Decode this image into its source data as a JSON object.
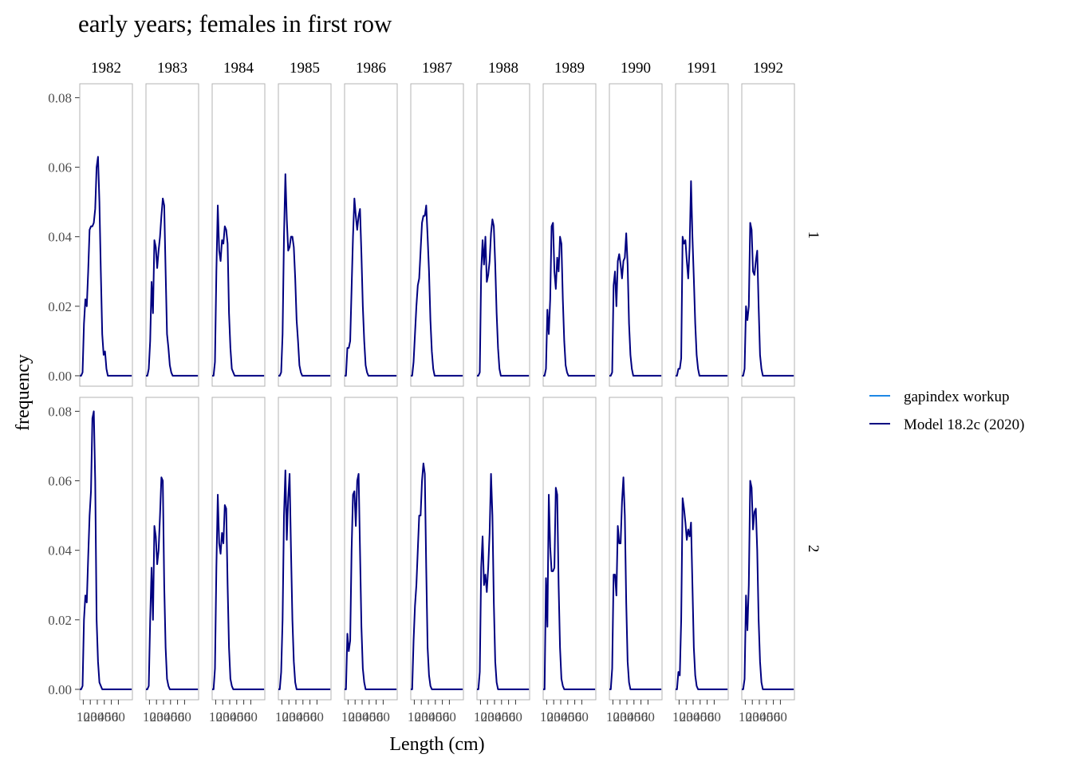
{
  "chart_data": {
    "type": "line",
    "title": "early years; females in first row",
    "xlabel": "Length (cm)",
    "ylabel": "frequency",
    "facet_columns": [
      "1982",
      "1983",
      "1984",
      "1985",
      "1986",
      "1987",
      "1988",
      "1989",
      "1990",
      "1991",
      "1992"
    ],
    "facet_rows": [
      "1",
      "2"
    ],
    "xlim": [
      5,
      80
    ],
    "ylim": [
      -0.003,
      0.084
    ],
    "x_ticks": [
      10,
      20,
      30,
      40,
      50,
      60
    ],
    "x_tick_labels": [
      "10",
      "20",
      "30",
      "40",
      "50",
      "60"
    ],
    "y_ticks": [
      0,
      0.02,
      0.04,
      0.06,
      0.08
    ],
    "y_tick_labels": [
      "0.00",
      "0.02",
      "0.04",
      "0.06",
      "0.08"
    ],
    "grid": false,
    "legend": {
      "placement": "right",
      "entries": [
        {
          "name": "gapindex workup",
          "color": "#1e88e5"
        },
        {
          "name": "Model 18.2c (2020)",
          "color": "#000080"
        }
      ]
    },
    "series_color": "#000080",
    "x": [
      5,
      7,
      9,
      11,
      13,
      15,
      17,
      19,
      21,
      23,
      25,
      27,
      29,
      31,
      33,
      35,
      37,
      39,
      41,
      43,
      45,
      47,
      49,
      51,
      53,
      55,
      57,
      59,
      61,
      63,
      65,
      67,
      69,
      71,
      73,
      75,
      77,
      79
    ],
    "panels": [
      [
        [
          0,
          0,
          0.001,
          0.015,
          0.022,
          0.02,
          0.03,
          0.042,
          0.043,
          0.043,
          0.044,
          0.048,
          0.06,
          0.063,
          0.05,
          0.03,
          0.012,
          0.006,
          0.007,
          0.002,
          0,
          0,
          0,
          0,
          0,
          0,
          0,
          0,
          0,
          0,
          0,
          0,
          0,
          0,
          0,
          0,
          0,
          0
        ],
        [
          0,
          0,
          0.002,
          0.01,
          0.027,
          0.018,
          0.039,
          0.037,
          0.031,
          0.036,
          0.04,
          0.046,
          0.051,
          0.049,
          0.03,
          0.012,
          0.008,
          0.003,
          0.001,
          0,
          0,
          0,
          0,
          0,
          0,
          0,
          0,
          0,
          0,
          0,
          0,
          0,
          0,
          0,
          0,
          0,
          0,
          0
        ],
        [
          0,
          0,
          0.004,
          0.03,
          0.049,
          0.036,
          0.033,
          0.039,
          0.038,
          0.043,
          0.042,
          0.038,
          0.018,
          0.008,
          0.002,
          0.001,
          0,
          0,
          0,
          0,
          0,
          0,
          0,
          0,
          0,
          0,
          0,
          0,
          0,
          0,
          0,
          0,
          0,
          0,
          0,
          0,
          0,
          0
        ],
        [
          0,
          0,
          0.001,
          0.012,
          0.04,
          0.058,
          0.045,
          0.036,
          0.037,
          0.04,
          0.04,
          0.037,
          0.028,
          0.016,
          0.01,
          0.003,
          0.001,
          0,
          0,
          0,
          0,
          0,
          0,
          0,
          0,
          0,
          0,
          0,
          0,
          0,
          0,
          0,
          0,
          0,
          0,
          0,
          0,
          0
        ],
        [
          0,
          0,
          0.008,
          0.008,
          0.01,
          0.025,
          0.04,
          0.051,
          0.046,
          0.042,
          0.046,
          0.048,
          0.035,
          0.02,
          0.01,
          0.003,
          0.001,
          0,
          0,
          0,
          0,
          0,
          0,
          0,
          0,
          0,
          0,
          0,
          0,
          0,
          0,
          0,
          0,
          0,
          0,
          0,
          0,
          0
        ],
        [
          0,
          0,
          0.004,
          0.012,
          0.02,
          0.026,
          0.028,
          0.036,
          0.044,
          0.046,
          0.046,
          0.049,
          0.04,
          0.03,
          0.016,
          0.007,
          0.002,
          0,
          0,
          0,
          0,
          0,
          0,
          0,
          0,
          0,
          0,
          0,
          0,
          0,
          0,
          0,
          0,
          0,
          0,
          0,
          0,
          0
        ],
        [
          0,
          0,
          0.001,
          0.03,
          0.039,
          0.032,
          0.04,
          0.027,
          0.029,
          0.033,
          0.041,
          0.045,
          0.043,
          0.032,
          0.018,
          0.008,
          0.002,
          0,
          0,
          0,
          0,
          0,
          0,
          0,
          0,
          0,
          0,
          0,
          0,
          0,
          0,
          0,
          0,
          0,
          0,
          0,
          0,
          0
        ],
        [
          0,
          0,
          0.002,
          0.019,
          0.012,
          0.022,
          0.043,
          0.044,
          0.03,
          0.025,
          0.034,
          0.03,
          0.04,
          0.038,
          0.022,
          0.01,
          0.003,
          0.001,
          0,
          0,
          0,
          0,
          0,
          0,
          0,
          0,
          0,
          0,
          0,
          0,
          0,
          0,
          0,
          0,
          0,
          0,
          0,
          0
        ],
        [
          0,
          0,
          0.001,
          0.026,
          0.03,
          0.02,
          0.033,
          0.035,
          0.032,
          0.028,
          0.033,
          0.034,
          0.041,
          0.032,
          0.015,
          0.006,
          0.002,
          0,
          0,
          0,
          0,
          0,
          0,
          0,
          0,
          0,
          0,
          0,
          0,
          0,
          0,
          0,
          0,
          0,
          0,
          0,
          0,
          0
        ],
        [
          0,
          0,
          0.002,
          0.002,
          0.005,
          0.04,
          0.038,
          0.039,
          0.033,
          0.028,
          0.037,
          0.056,
          0.04,
          0.028,
          0.015,
          0.006,
          0.002,
          0,
          0,
          0,
          0,
          0,
          0,
          0,
          0,
          0,
          0,
          0,
          0,
          0,
          0,
          0,
          0,
          0,
          0,
          0,
          0,
          0
        ],
        [
          0,
          0,
          0.002,
          0.02,
          0.016,
          0.02,
          0.044,
          0.042,
          0.03,
          0.029,
          0.033,
          0.036,
          0.02,
          0.006,
          0.002,
          0,
          0,
          0,
          0,
          0,
          0,
          0,
          0,
          0,
          0,
          0,
          0,
          0,
          0,
          0,
          0,
          0,
          0,
          0,
          0,
          0,
          0,
          0
        ]
      ],
      [
        [
          0,
          0,
          0.001,
          0.02,
          0.027,
          0.025,
          0.038,
          0.05,
          0.057,
          0.078,
          0.08,
          0.06,
          0.02,
          0.008,
          0.002,
          0.001,
          0,
          0,
          0,
          0,
          0,
          0,
          0,
          0,
          0,
          0,
          0,
          0,
          0,
          0,
          0,
          0,
          0,
          0,
          0,
          0,
          0,
          0
        ],
        [
          0,
          0,
          0.001,
          0.02,
          0.035,
          0.02,
          0.047,
          0.044,
          0.036,
          0.04,
          0.05,
          0.061,
          0.06,
          0.03,
          0.012,
          0.003,
          0.001,
          0,
          0,
          0,
          0,
          0,
          0,
          0,
          0,
          0,
          0,
          0,
          0,
          0,
          0,
          0,
          0,
          0,
          0,
          0,
          0,
          0
        ],
        [
          0,
          0,
          0.006,
          0.035,
          0.056,
          0.042,
          0.039,
          0.045,
          0.042,
          0.053,
          0.052,
          0.03,
          0.012,
          0.003,
          0.001,
          0,
          0,
          0,
          0,
          0,
          0,
          0,
          0,
          0,
          0,
          0,
          0,
          0,
          0,
          0,
          0,
          0,
          0,
          0,
          0,
          0,
          0,
          0
        ],
        [
          0,
          0,
          0.005,
          0.02,
          0.05,
          0.063,
          0.043,
          0.055,
          0.062,
          0.04,
          0.02,
          0.008,
          0.002,
          0,
          0,
          0,
          0,
          0,
          0,
          0,
          0,
          0,
          0,
          0,
          0,
          0,
          0,
          0,
          0,
          0,
          0,
          0,
          0,
          0,
          0,
          0,
          0,
          0
        ],
        [
          0,
          0,
          0.016,
          0.011,
          0.014,
          0.04,
          0.056,
          0.057,
          0.047,
          0.06,
          0.062,
          0.04,
          0.018,
          0.006,
          0.002,
          0,
          0,
          0,
          0,
          0,
          0,
          0,
          0,
          0,
          0,
          0,
          0,
          0,
          0,
          0,
          0,
          0,
          0,
          0,
          0,
          0,
          0,
          0
        ],
        [
          0,
          0,
          0.014,
          0.024,
          0.03,
          0.04,
          0.05,
          0.05,
          0.06,
          0.065,
          0.062,
          0.035,
          0.012,
          0.004,
          0.001,
          0,
          0,
          0,
          0,
          0,
          0,
          0,
          0,
          0,
          0,
          0,
          0,
          0,
          0,
          0,
          0,
          0,
          0,
          0,
          0,
          0,
          0,
          0
        ],
        [
          0,
          0,
          0.005,
          0.035,
          0.044,
          0.03,
          0.033,
          0.028,
          0.035,
          0.045,
          0.062,
          0.05,
          0.025,
          0.008,
          0.002,
          0,
          0,
          0,
          0,
          0,
          0,
          0,
          0,
          0,
          0,
          0,
          0,
          0,
          0,
          0,
          0,
          0,
          0,
          0,
          0,
          0,
          0,
          0
        ],
        [
          0,
          0,
          0.032,
          0.018,
          0.056,
          0.041,
          0.034,
          0.034,
          0.035,
          0.058,
          0.056,
          0.03,
          0.012,
          0.003,
          0.001,
          0,
          0,
          0,
          0,
          0,
          0,
          0,
          0,
          0,
          0,
          0,
          0,
          0,
          0,
          0,
          0,
          0,
          0,
          0,
          0,
          0,
          0,
          0
        ],
        [
          0,
          0,
          0.006,
          0.033,
          0.033,
          0.027,
          0.047,
          0.042,
          0.042,
          0.054,
          0.061,
          0.05,
          0.025,
          0.008,
          0.002,
          0,
          0,
          0,
          0,
          0,
          0,
          0,
          0,
          0,
          0,
          0,
          0,
          0,
          0,
          0,
          0,
          0,
          0,
          0,
          0,
          0,
          0,
          0
        ],
        [
          0,
          0,
          0.005,
          0.004,
          0.02,
          0.055,
          0.052,
          0.048,
          0.043,
          0.046,
          0.044,
          0.048,
          0.03,
          0.012,
          0.004,
          0.001,
          0,
          0,
          0,
          0,
          0,
          0,
          0,
          0,
          0,
          0,
          0,
          0,
          0,
          0,
          0,
          0,
          0,
          0,
          0,
          0,
          0,
          0
        ],
        [
          0,
          0,
          0.003,
          0.027,
          0.017,
          0.03,
          0.06,
          0.058,
          0.046,
          0.051,
          0.052,
          0.04,
          0.02,
          0.008,
          0.002,
          0,
          0,
          0,
          0,
          0,
          0,
          0,
          0,
          0,
          0,
          0,
          0,
          0,
          0,
          0,
          0,
          0,
          0,
          0,
          0,
          0,
          0,
          0
        ]
      ]
    ]
  }
}
